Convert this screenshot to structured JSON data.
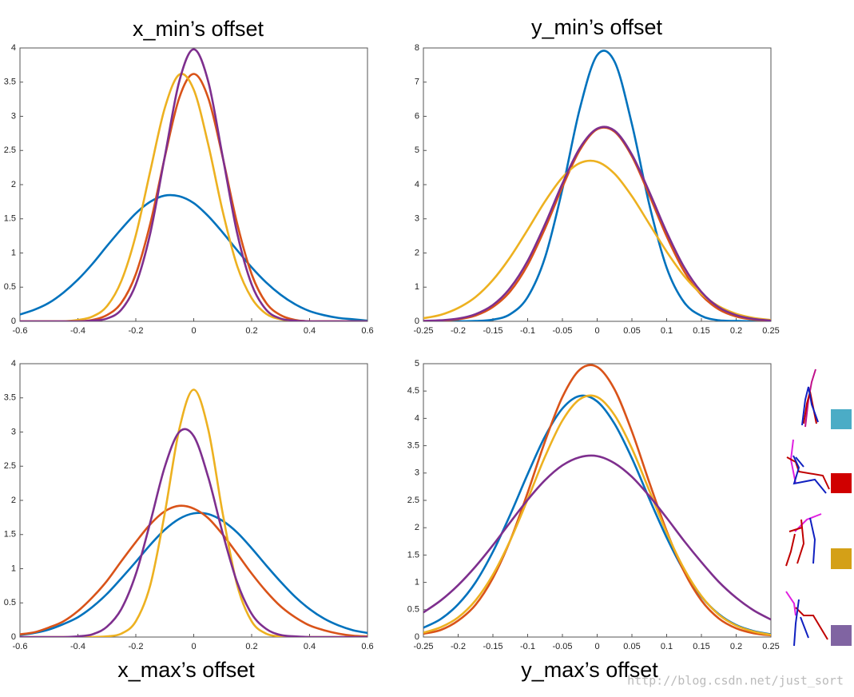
{
  "chart_data": [
    {
      "type": "line",
      "title": "x_min’s  offset",
      "x": [
        -0.6,
        -0.55,
        -0.5,
        -0.45,
        -0.4,
        -0.35,
        -0.3,
        -0.25,
        -0.2,
        -0.15,
        -0.1,
        -0.05,
        0,
        0.05,
        0.1,
        0.15,
        0.2,
        0.25,
        0.3,
        0.35,
        0.4,
        0.45,
        0.5,
        0.55,
        0.6
      ],
      "series": [
        {
          "color": "#0072bd",
          "values": [
            0.1,
            0.17,
            0.27,
            0.42,
            0.61,
            0.84,
            1.1,
            1.35,
            1.58,
            1.75,
            1.84,
            1.83,
            1.73,
            1.54,
            1.3,
            1.04,
            0.79,
            0.57,
            0.39,
            0.25,
            0.15,
            0.09,
            0.05,
            0.03,
            0.01
          ]
        },
        {
          "color": "#d95319",
          "values": [
            0,
            0,
            0,
            0,
            0,
            0.02,
            0.09,
            0.27,
            0.69,
            1.43,
            2.4,
            3.27,
            3.62,
            3.27,
            2.4,
            1.43,
            0.69,
            0.27,
            0.09,
            0.02,
            0,
            0,
            0,
            0,
            0
          ]
        },
        {
          "color": "#edb120",
          "values": [
            0,
            0,
            0,
            0,
            0.02,
            0.07,
            0.22,
            0.59,
            1.26,
            2.2,
            3.12,
            3.61,
            3.39,
            2.59,
            1.61,
            0.81,
            0.34,
            0.11,
            0.03,
            0.01,
            0,
            0,
            0,
            0,
            0
          ]
        },
        {
          "color": "#7e2f8e",
          "values": [
            0,
            0,
            0,
            0,
            0,
            0.01,
            0.04,
            0.17,
            0.54,
            1.29,
            2.41,
            3.51,
            3.98,
            3.51,
            2.41,
            1.29,
            0.54,
            0.17,
            0.04,
            0.01,
            0,
            0,
            0,
            0,
            0
          ]
        }
      ],
      "xlim": [
        -0.6,
        0.6
      ],
      "xticks": [
        -0.6,
        -0.4,
        -0.2,
        0,
        0.2,
        0.4,
        0.6
      ],
      "ylim": [
        0,
        4
      ],
      "yticks": [
        0,
        0.5,
        1,
        1.5,
        2,
        2.5,
        3,
        3.5,
        4
      ]
    },
    {
      "type": "line",
      "title": "y_min’s  offset",
      "x": [
        -0.25,
        -0.225,
        -0.2,
        -0.175,
        -0.15,
        -0.125,
        -0.1,
        -0.075,
        -0.05,
        -0.025,
        0,
        0.025,
        0.05,
        0.075,
        0.1,
        0.125,
        0.15,
        0.175,
        0.2,
        0.225,
        0.25
      ],
      "series": [
        {
          "color": "#0072bd",
          "values": [
            0,
            0,
            0,
            0.01,
            0.05,
            0.21,
            0.71,
            1.87,
            3.87,
            6.22,
            7.79,
            7.6,
            5.77,
            3.42,
            1.57,
            0.56,
            0.16,
            0.03,
            0.01,
            0,
            0
          ]
        },
        {
          "color": "#d95319",
          "values": [
            0.01,
            0.02,
            0.06,
            0.17,
            0.42,
            0.88,
            1.65,
            2.72,
            3.93,
            5.01,
            5.62,
            5.55,
            4.83,
            3.69,
            2.49,
            1.47,
            0.77,
            0.35,
            0.14,
            0.05,
            0.02
          ]
        },
        {
          "color": "#edb120",
          "values": [
            0.09,
            0.19,
            0.39,
            0.71,
            1.21,
            1.88,
            2.68,
            3.51,
            4.21,
            4.63,
            4.67,
            4.32,
            3.66,
            2.85,
            2.04,
            1.33,
            0.8,
            0.44,
            0.22,
            0.1,
            0.04
          ]
        },
        {
          "color": "#7e2f8e",
          "values": [
            0.01,
            0.03,
            0.08,
            0.21,
            0.48,
            0.98,
            1.77,
            2.84,
            4.03,
            5.07,
            5.64,
            5.58,
            4.88,
            3.79,
            2.61,
            1.59,
            0.86,
            0.41,
            0.18,
            0.07,
            0.02
          ]
        }
      ],
      "xlim": [
        -0.25,
        0.25
      ],
      "xticks": [
        -0.25,
        -0.2,
        -0.15,
        -0.1,
        -0.05,
        0,
        0.05,
        0.1,
        0.15,
        0.2,
        0.25
      ],
      "ylim": [
        0,
        8
      ],
      "yticks": [
        0,
        1,
        2,
        3,
        4,
        5,
        6,
        7,
        8
      ]
    },
    {
      "type": "line",
      "title": "x_max’s  offset",
      "x": [
        -0.6,
        -0.55,
        -0.5,
        -0.45,
        -0.4,
        -0.35,
        -0.3,
        -0.25,
        -0.2,
        -0.15,
        -0.1,
        -0.05,
        0,
        0.05,
        0.1,
        0.15,
        0.2,
        0.25,
        0.3,
        0.35,
        0.4,
        0.45,
        0.5,
        0.55,
        0.6
      ],
      "series": [
        {
          "color": "#0072bd",
          "values": [
            0.03,
            0.06,
            0.11,
            0.19,
            0.29,
            0.44,
            0.63,
            0.86,
            1.1,
            1.35,
            1.57,
            1.73,
            1.81,
            1.8,
            1.7,
            1.53,
            1.3,
            1.05,
            0.81,
            0.59,
            0.41,
            0.27,
            0.17,
            0.1,
            0.06
          ]
        },
        {
          "color": "#d95319",
          "values": [
            0.04,
            0.07,
            0.14,
            0.23,
            0.38,
            0.58,
            0.82,
            1.11,
            1.39,
            1.65,
            1.84,
            1.92,
            1.88,
            1.74,
            1.5,
            1.22,
            0.93,
            0.67,
            0.45,
            0.29,
            0.17,
            0.1,
            0.05,
            0.02,
            0.01
          ]
        },
        {
          "color": "#edb120",
          "values": [
            0,
            0,
            0,
            0,
            0,
            0,
            0.01,
            0.05,
            0.23,
            0.76,
            1.81,
            3.04,
            3.62,
            3.04,
            1.81,
            0.76,
            0.23,
            0.05,
            0.01,
            0,
            0,
            0,
            0,
            0,
            0
          ]
        },
        {
          "color": "#7e2f8e",
          "values": [
            0,
            0,
            0,
            0,
            0.01,
            0.04,
            0.15,
            0.41,
            0.92,
            1.68,
            2.49,
            3.0,
            2.94,
            2.34,
            1.52,
            0.8,
            0.34,
            0.12,
            0.03,
            0.01,
            0,
            0,
            0,
            0,
            0
          ]
        }
      ],
      "xlim": [
        -0.6,
        0.6
      ],
      "xticks": [
        -0.6,
        -0.4,
        -0.2,
        0,
        0.2,
        0.4,
        0.6
      ],
      "ylim": [
        0,
        4
      ],
      "yticks": [
        0,
        0.5,
        1,
        1.5,
        2,
        2.5,
        3,
        3.5,
        4
      ]
    },
    {
      "type": "line",
      "title": "y_max’s  offset",
      "x": [
        -0.25,
        -0.225,
        -0.2,
        -0.175,
        -0.15,
        -0.125,
        -0.1,
        -0.075,
        -0.05,
        -0.025,
        0,
        0.025,
        0.05,
        0.075,
        0.1,
        0.125,
        0.15,
        0.175,
        0.2,
        0.225,
        0.25
      ],
      "series": [
        {
          "color": "#0072bd",
          "values": [
            0.17,
            0.33,
            0.6,
            1.0,
            1.56,
            2.24,
            2.98,
            3.67,
            4.18,
            4.41,
            4.31,
            3.9,
            3.27,
            2.53,
            1.82,
            1.21,
            0.74,
            0.42,
            0.22,
            0.11,
            0.05
          ]
        },
        {
          "color": "#d95319",
          "values": [
            0.06,
            0.13,
            0.3,
            0.59,
            1.08,
            1.77,
            2.64,
            3.58,
            4.39,
            4.89,
            4.94,
            4.53,
            3.76,
            2.83,
            1.94,
            1.2,
            0.67,
            0.34,
            0.16,
            0.07,
            0.03
          ]
        },
        {
          "color": "#edb120",
          "values": [
            0.08,
            0.18,
            0.36,
            0.67,
            1.14,
            1.77,
            2.52,
            3.3,
            3.96,
            4.35,
            4.39,
            4.06,
            3.45,
            2.68,
            1.91,
            1.25,
            0.75,
            0.41,
            0.21,
            0.1,
            0.04
          ]
        },
        {
          "color": "#7e2f8e",
          "values": [
            0.45,
            0.67,
            0.95,
            1.29,
            1.68,
            2.1,
            2.51,
            2.87,
            3.14,
            3.29,
            3.31,
            3.18,
            2.93,
            2.58,
            2.18,
            1.76,
            1.37,
            1.01,
            0.72,
            0.49,
            0.32
          ]
        }
      ],
      "xlim": [
        -0.25,
        0.25
      ],
      "xticks": [
        -0.25,
        -0.2,
        -0.15,
        -0.1,
        -0.05,
        0,
        0.05,
        0.1,
        0.15,
        0.2,
        0.25
      ],
      "ylim": [
        0,
        5
      ],
      "yticks": [
        0,
        0.5,
        1,
        1.5,
        2,
        2.5,
        3,
        3.5,
        4,
        4.5,
        5
      ]
    }
  ],
  "watermark": "http://blog.csdn.net/just_sort"
}
